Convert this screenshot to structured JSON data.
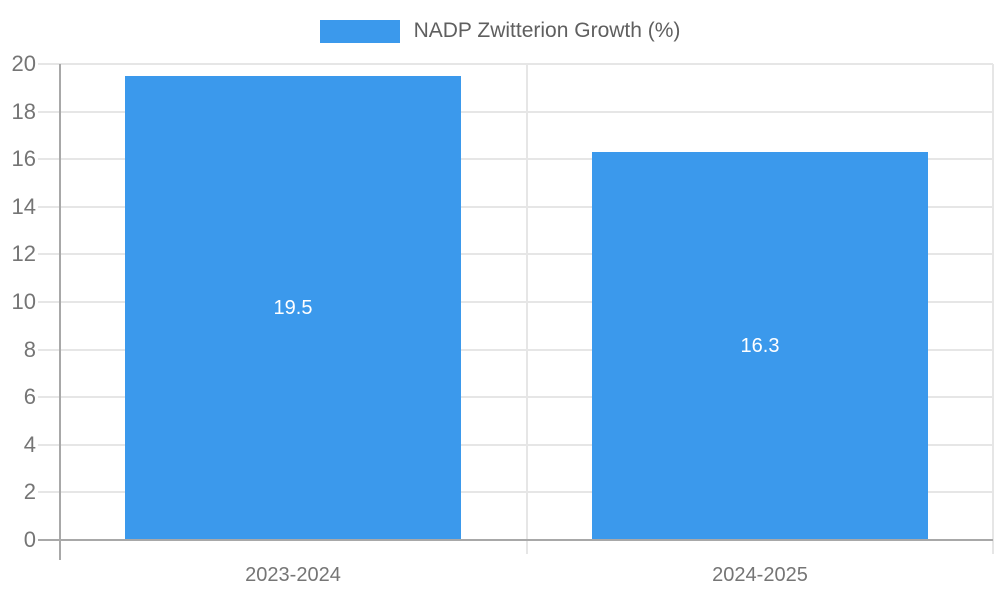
{
  "legend": {
    "label": "NADP Zwitterion Growth (%)"
  },
  "colors": {
    "bar": "#3b99ec",
    "grid": "#e6e6e6",
    "axis": "#a8a8a8",
    "tick_label": "#757575",
    "legend_text": "#5f5f5f",
    "bar_label": "#ffffff",
    "background": "#ffffff"
  },
  "chart_data": {
    "type": "bar",
    "title": "",
    "xlabel": "",
    "ylabel": "",
    "categories": [
      "2023-2024",
      "2024-2025"
    ],
    "values": [
      19.5,
      16.3
    ],
    "bar_labels": [
      "19.5",
      "16.3"
    ],
    "series_name": "NADP Zwitterion Growth (%)",
    "ylim": [
      0,
      20
    ],
    "ytick_step": 2,
    "ytick_labels": [
      "0",
      "2",
      "4",
      "6",
      "8",
      "10",
      "12",
      "14",
      "16",
      "18",
      "20"
    ],
    "grid": true,
    "legend_position": "top-center"
  }
}
